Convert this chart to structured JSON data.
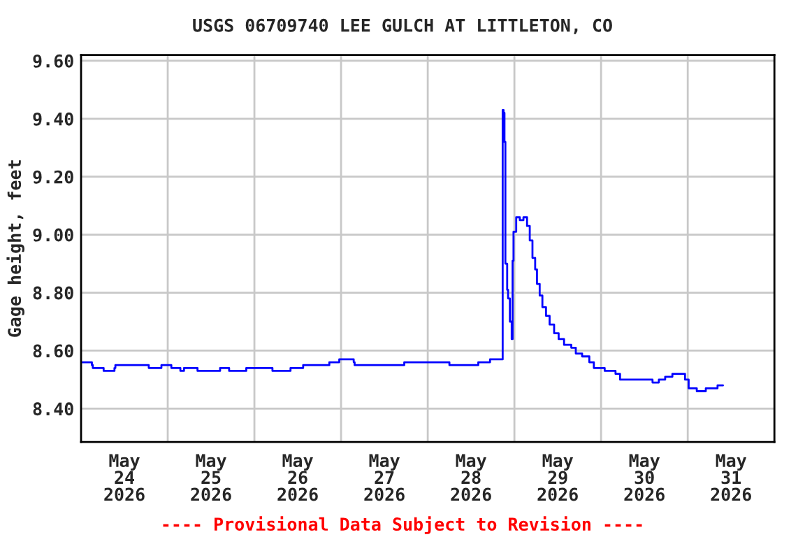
{
  "chart_data": {
    "type": "step",
    "title": "USGS 06709740 LEE GULCH AT LITTLETON, CO",
    "ylabel": "Gage height, feet",
    "annotations": [
      "---- Provisional Data Subject to Revision ----"
    ],
    "xlim": [
      "2026-05-24T00:00",
      "2026-06-01T00:00"
    ],
    "xticks": [
      {
        "value": "2026-05-24T12:00",
        "label": "May\n24\n2026"
      },
      {
        "value": "2026-05-25T00:00",
        "label": null
      },
      {
        "value": "2026-05-25T12:00",
        "label": "May\n25\n2026"
      },
      {
        "value": "2026-05-26T00:00",
        "label": null
      },
      {
        "value": "2026-05-26T12:00",
        "label": "May\n26\n2026"
      },
      {
        "value": "2026-05-27T00:00",
        "label": null
      },
      {
        "value": "2026-05-27T12:00",
        "label": "May\n27\n2026"
      },
      {
        "value": "2026-05-28T00:00",
        "label": null
      },
      {
        "value": "2026-05-28T12:00",
        "label": "May\n28\n2026"
      },
      {
        "value": "2026-05-29T00:00",
        "label": null
      },
      {
        "value": "2026-05-29T12:00",
        "label": "May\n29\n2026"
      },
      {
        "value": "2026-05-30T00:00",
        "label": null
      },
      {
        "value": "2026-05-30T12:00",
        "label": "May\n30\n2026"
      },
      {
        "value": "2026-05-31T00:00",
        "label": null
      },
      {
        "value": "2026-05-31T12:00",
        "label": "May\n31\n2026"
      }
    ],
    "ylim": [
      8.285,
      9.62
    ],
    "yticks": [
      {
        "value": 8.4,
        "label": "8.40"
      },
      {
        "value": 8.6,
        "label": "8.60"
      },
      {
        "value": 8.8,
        "label": "8.80"
      },
      {
        "value": 9.0,
        "label": "9.00"
      },
      {
        "value": 9.2,
        "label": "9.20"
      },
      {
        "value": 9.4,
        "label": "9.40"
      },
      {
        "value": 9.6,
        "label": "9.60"
      }
    ],
    "grid": true,
    "legend": false,
    "marker": "none",
    "line_style": "solid",
    "series": [
      {
        "color": "#0000ff",
        "x": [
          "2026-05-24T00:15",
          "2026-05-24T03:00",
          "2026-05-24T03:15",
          "2026-05-24T06:15",
          "2026-05-24T09:15",
          "2026-05-24T09:30",
          "2026-05-24T18:30",
          "2026-05-24T18:45",
          "2026-05-24T22:15",
          "2026-05-25T00:45",
          "2026-05-25T01:00",
          "2026-05-25T03:15",
          "2026-05-25T03:30",
          "2026-05-25T04:30",
          "2026-05-25T08:00",
          "2026-05-25T08:15",
          "2026-05-25T14:15",
          "2026-05-25T14:30",
          "2026-05-25T16:45",
          "2026-05-25T17:00",
          "2026-05-25T21:30",
          "2026-05-25T21:45",
          "2026-05-26T04:45",
          "2026-05-26T05:00",
          "2026-05-26T09:45",
          "2026-05-26T10:00",
          "2026-05-26T13:15",
          "2026-05-26T13:30",
          "2026-05-26T20:30",
          "2026-05-26T20:45",
          "2026-05-26T23:15",
          "2026-05-26T23:30",
          "2026-05-27T02:00",
          "2026-05-27T03:30",
          "2026-05-27T03:45",
          "2026-05-27T17:15",
          "2026-05-27T17:30",
          "2026-05-28T05:45",
          "2026-05-28T06:00",
          "2026-05-28T13:45",
          "2026-05-28T14:00",
          "2026-05-28T17:00",
          "2026-05-28T17:15",
          "2026-05-28T20:30",
          "2026-05-28T20:45",
          "2026-05-28T21:00",
          "2026-05-28T21:15",
          "2026-05-28T21:30",
          "2026-05-28T22:00",
          "2026-05-28T22:15",
          "2026-05-28T22:45",
          "2026-05-28T23:15",
          "2026-05-28T23:30",
          "2026-05-28T23:45",
          "2026-05-29T00:30",
          "2026-05-29T01:30",
          "2026-05-29T02:30",
          "2026-05-29T03:30",
          "2026-05-29T04:15",
          "2026-05-29T05:00",
          "2026-05-29T05:45",
          "2026-05-29T06:15",
          "2026-05-29T07:00",
          "2026-05-29T07:45",
          "2026-05-29T08:45",
          "2026-05-29T09:45",
          "2026-05-29T11:00",
          "2026-05-29T12:15",
          "2026-05-29T13:45",
          "2026-05-29T15:45",
          "2026-05-29T17:00",
          "2026-05-29T18:45",
          "2026-05-29T20:45",
          "2026-05-29T22:00",
          "2026-05-30T01:00",
          "2026-05-30T04:00",
          "2026-05-30T05:15",
          "2026-05-30T13:30",
          "2026-05-30T14:15",
          "2026-05-30T16:00",
          "2026-05-30T17:45",
          "2026-05-30T19:45",
          "2026-05-30T22:15",
          "2026-05-30T23:15",
          "2026-05-31T00:15",
          "2026-05-31T02:30",
          "2026-05-31T04:30",
          "2026-05-31T05:00",
          "2026-05-31T08:00",
          "2026-05-31T08:15",
          "2026-05-31T09:45"
        ],
        "values": [
          8.56,
          8.55,
          8.54,
          8.53,
          8.54,
          8.55,
          8.55,
          8.54,
          8.55,
          8.55,
          8.54,
          8.54,
          8.53,
          8.54,
          8.54,
          8.53,
          8.53,
          8.54,
          8.54,
          8.53,
          8.53,
          8.54,
          8.54,
          8.53,
          8.53,
          8.54,
          8.54,
          8.55,
          8.55,
          8.56,
          8.56,
          8.57,
          8.57,
          8.56,
          8.55,
          8.55,
          8.56,
          8.56,
          8.55,
          8.55,
          8.56,
          8.56,
          8.57,
          8.57,
          9.43,
          9.42,
          9.32,
          8.9,
          8.81,
          8.78,
          8.7,
          8.64,
          8.91,
          9.01,
          9.06,
          9.05,
          9.06,
          9.03,
          8.98,
          8.92,
          8.88,
          8.83,
          8.79,
          8.75,
          8.72,
          8.69,
          8.66,
          8.64,
          8.62,
          8.61,
          8.59,
          8.58,
          8.56,
          8.54,
          8.53,
          8.52,
          8.5,
          8.5,
          8.49,
          8.5,
          8.51,
          8.52,
          8.52,
          8.5,
          8.47,
          8.46,
          8.46,
          8.47,
          8.47,
          8.48,
          8.48
        ]
      }
    ]
  }
}
